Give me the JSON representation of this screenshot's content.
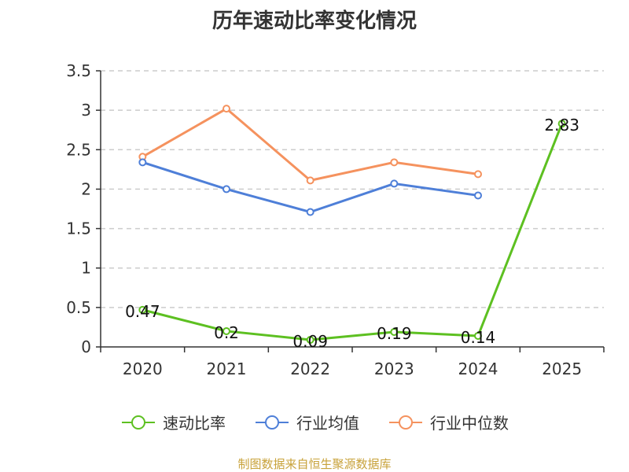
{
  "chart_data": {
    "type": "line",
    "title": "历年速动比率变化情况",
    "categories": [
      "2020",
      "2021",
      "2022",
      "2023",
      "2024",
      "2025"
    ],
    "ylim": [
      0,
      3.5
    ],
    "yticks": [
      "0",
      "0.5",
      "1",
      "1.5",
      "2",
      "2.5",
      "3",
      "3.5"
    ],
    "series": [
      {
        "name": "速动比率",
        "color": "#5dc021",
        "values": [
          0.47,
          0.2,
          0.09,
          0.19,
          0.14,
          2.83
        ],
        "labels": [
          "0.47",
          "0.2",
          "0.09",
          "0.19",
          "0.14",
          "2.83"
        ]
      },
      {
        "name": "行业均值",
        "color": "#4e7fd8",
        "values": [
          2.34,
          2.0,
          1.71,
          2.07,
          1.92,
          null
        ]
      },
      {
        "name": "行业中位数",
        "color": "#f5925e",
        "values": [
          2.41,
          3.02,
          2.11,
          2.34,
          2.19,
          null
        ]
      }
    ],
    "grid": true,
    "legend_position": "bottom"
  },
  "source": "制图数据来自恒生聚源数据库"
}
